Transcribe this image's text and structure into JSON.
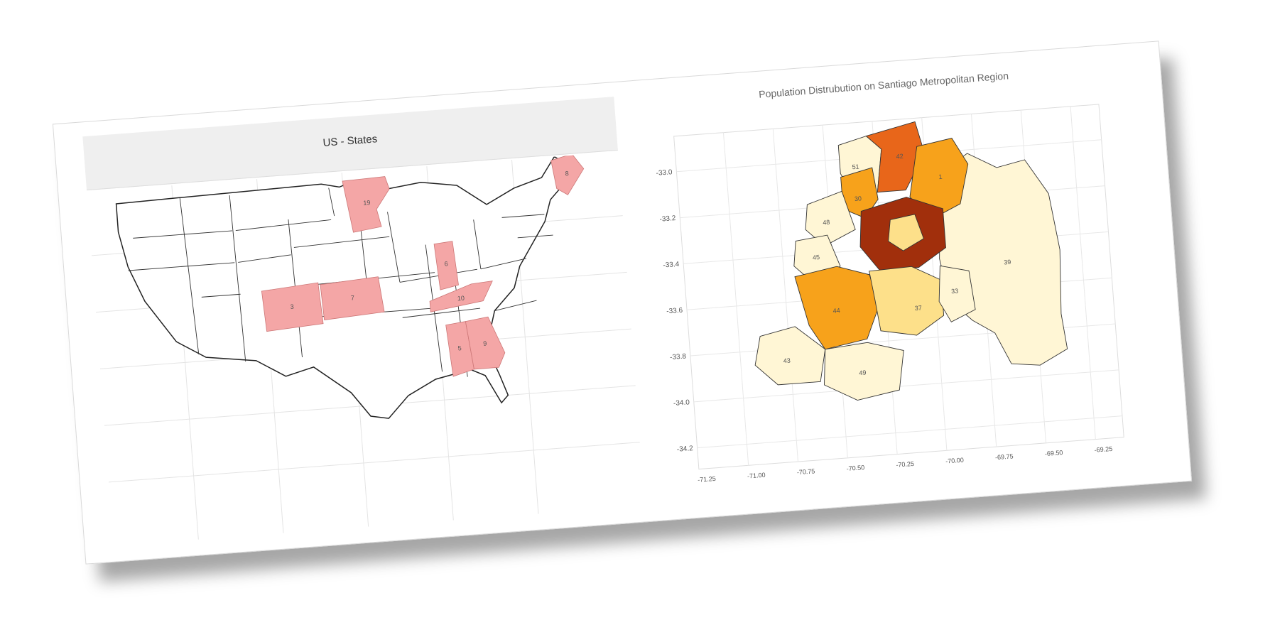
{
  "left_panel": {
    "title": "US - States",
    "highlighted_states": [
      {
        "name": "Minnesota",
        "label": "19"
      },
      {
        "name": "Maine",
        "label": "8"
      },
      {
        "name": "Colorado",
        "label": "3"
      },
      {
        "name": "Kansas",
        "label": "7"
      },
      {
        "name": "Indiana",
        "label": "6"
      },
      {
        "name": "Kentucky",
        "label": "10"
      },
      {
        "name": "Alabama",
        "label": "5"
      },
      {
        "name": "Georgia",
        "label": "9"
      }
    ],
    "highlight_color": "#f4a6a6"
  },
  "right_panel": {
    "title": "Population Distrubution on Santiago Metropolitan Region",
    "y_ticks": [
      "-33.0",
      "-33.2",
      "-33.4",
      "-33.6",
      "-33.8",
      "-34.0",
      "-34.2"
    ],
    "x_ticks": [
      "-71.25",
      "-71.00",
      "-70.75",
      "-70.50",
      "-70.25",
      "-70.00",
      "-69.75",
      "-69.50",
      "-69.25"
    ],
    "region_labels": [
      "51",
      "42",
      "30",
      "1",
      "48",
      "45",
      "39",
      "44",
      "33",
      "37",
      "49",
      "43"
    ],
    "palette": {
      "lightest": "#fff6d5",
      "light": "#fde08a",
      "mid": "#f7a21b",
      "strong": "#e8661a",
      "darkest": "#a12f0c"
    }
  }
}
